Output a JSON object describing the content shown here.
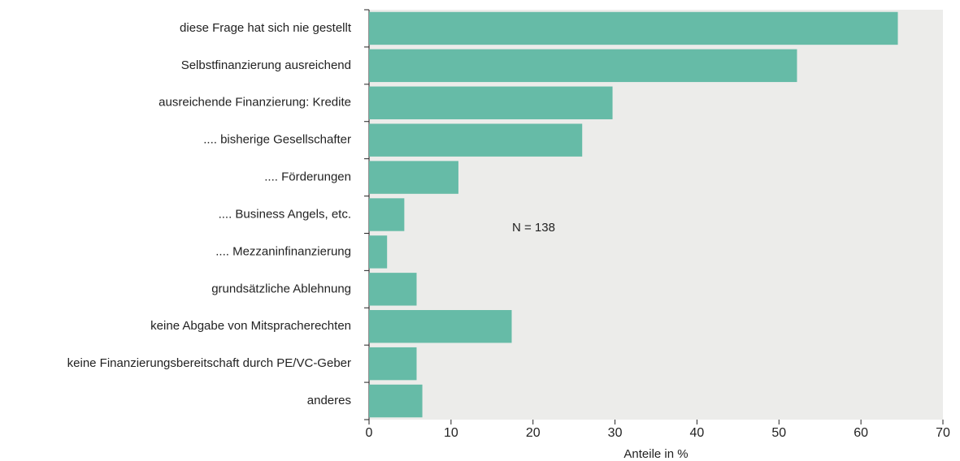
{
  "chart_data": {
    "type": "barh",
    "categories": [
      "diese Frage hat sich nie gestellt",
      "Selbstfinanzierung ausreichend",
      "ausreichende Finanzierung: Kredite",
      ".... bisherige Gesellschafter",
      ".... Förderungen",
      ".... Business Angels, etc.",
      ".... Mezzaninfinanzierung",
      "grundsätzliche Ablehnung",
      "keine Abgabe von Mitspracherechten",
      "keine Finanzierungsbereitschaft durch PE/VC-Geber",
      "anderes"
    ],
    "values": [
      64.5,
      52.2,
      29.7,
      26.0,
      10.9,
      4.3,
      2.2,
      5.8,
      17.4,
      5.8,
      6.5
    ],
    "color": "#66bba7",
    "xlabel": "Anteile in %",
    "annotation": "N = 138",
    "xlim": [
      0,
      70
    ],
    "xticks": [
      0,
      10,
      20,
      30,
      40,
      50,
      60,
      70
    ],
    "grid": false
  }
}
